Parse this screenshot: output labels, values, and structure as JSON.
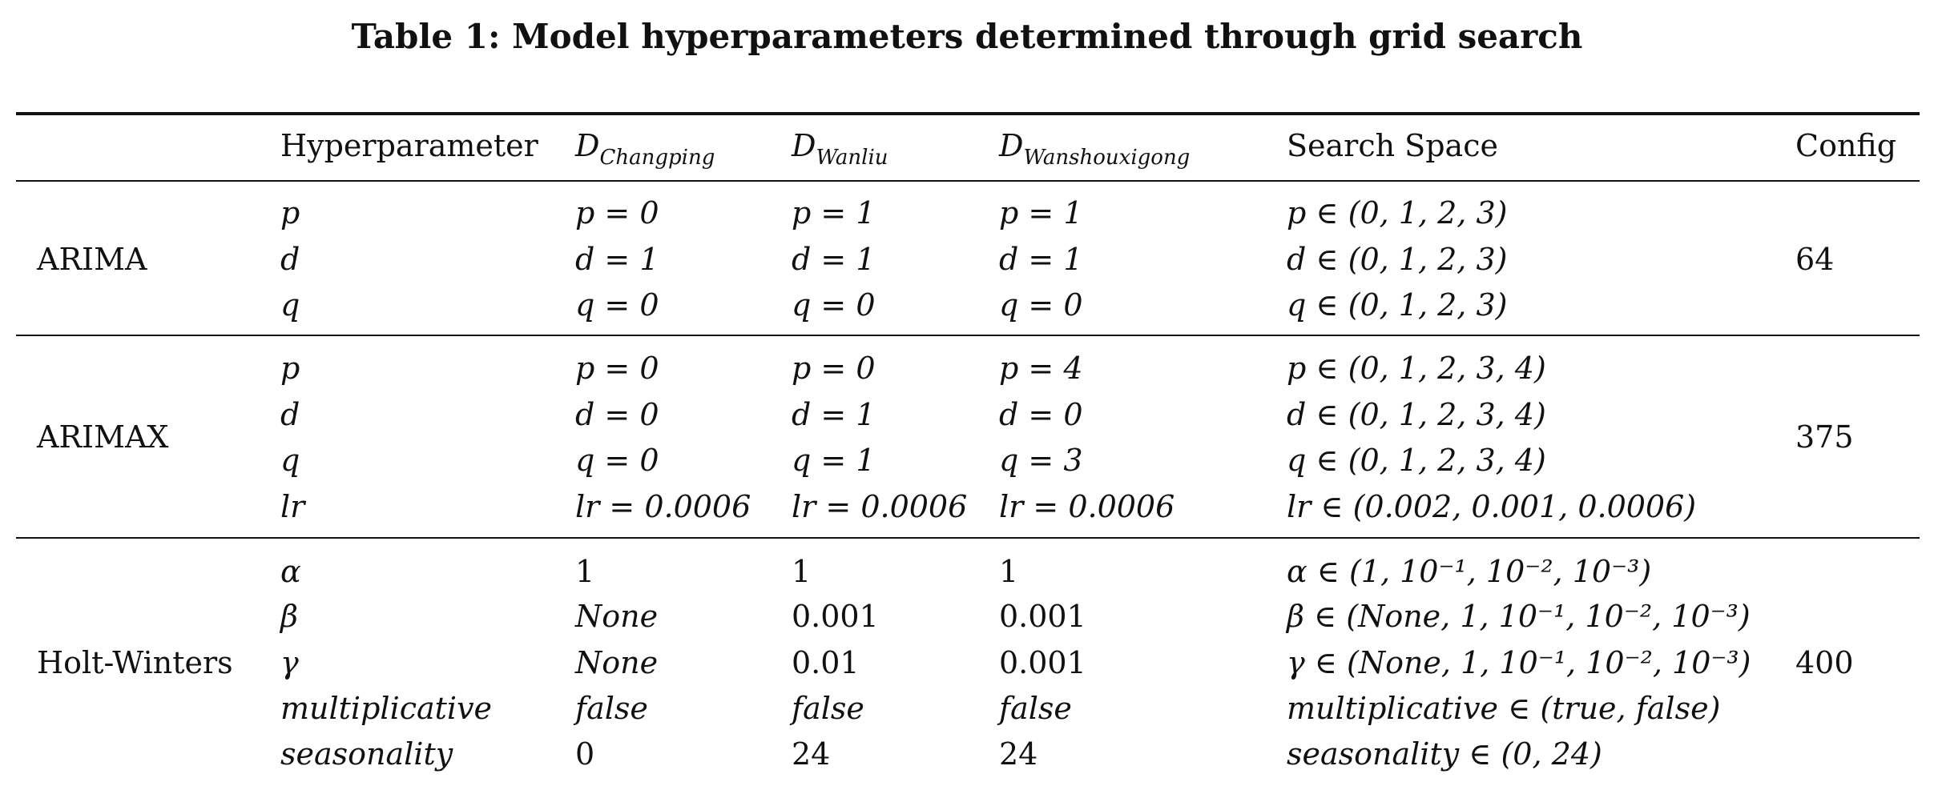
{
  "caption": "Table 1: Model hyperparameters determined through grid search",
  "columns": {
    "hyperparameter": "Hyperparameter",
    "d_base": "D",
    "d1_sub": "Changping",
    "d2_sub": "Wanliu",
    "d3_sub": "Wanshouxigong",
    "search_space": "Search Space",
    "config": "Config"
  },
  "groups": [
    {
      "model": "ARIMA",
      "config": "64",
      "rows": [
        {
          "param": "p",
          "d1": "p = 0",
          "d2": "p = 1",
          "d3": "p = 1",
          "space": "p ∈ (0, 1, 2, 3)"
        },
        {
          "param": "d",
          "d1": "d = 1",
          "d2": "d = 1",
          "d3": "d = 1",
          "space": "d ∈ (0, 1, 2, 3)"
        },
        {
          "param": "q",
          "d1": "q = 0",
          "d2": "q = 0",
          "d3": "q = 0",
          "space": "q ∈ (0, 1, 2, 3)"
        }
      ]
    },
    {
      "model": "ARIMAX",
      "config": "375",
      "rows": [
        {
          "param": "p",
          "d1": "p = 0",
          "d2": "p = 0",
          "d3": "p = 4",
          "space": "p ∈ (0, 1, 2, 3, 4)"
        },
        {
          "param": "d",
          "d1": "d = 0",
          "d2": "d = 1",
          "d3": "d = 0",
          "space": "d ∈ (0, 1, 2, 3, 4)"
        },
        {
          "param": "q",
          "d1": "q = 0",
          "d2": "q = 1",
          "d3": "q = 3",
          "space": "q ∈ (0, 1, 2, 3, 4)"
        },
        {
          "param": "lr",
          "d1": "lr = 0.0006",
          "d2": "lr = 0.0006",
          "d3": "lr = 0.0006",
          "space": "lr ∈ (0.002, 0.001, 0.0006)"
        }
      ]
    },
    {
      "model": "Holt-Winters",
      "config": "400",
      "rows": [
        {
          "param": "α",
          "d1": "1",
          "d2": "1",
          "d3": "1",
          "space": "α ∈ (1, 10⁻¹, 10⁻², 10⁻³)"
        },
        {
          "param": "β",
          "d1": "None",
          "d2": "0.001",
          "d3": "0.001",
          "space": "β ∈ (None, 1, 10⁻¹, 10⁻², 10⁻³)"
        },
        {
          "param": "γ",
          "d1": "None",
          "d2": "0.01",
          "d3": "0.001",
          "space": "γ ∈ (None, 1, 10⁻¹, 10⁻², 10⁻³)"
        },
        {
          "param": "multiplicative",
          "d1": "false",
          "d2": "false",
          "d3": "false",
          "space": "multiplicative ∈ (true, false)"
        },
        {
          "param": "seasonality",
          "d1": "0",
          "d2": "24",
          "d3": "24",
          "space": "seasonality ∈ (0, 24)"
        }
      ]
    }
  ]
}
